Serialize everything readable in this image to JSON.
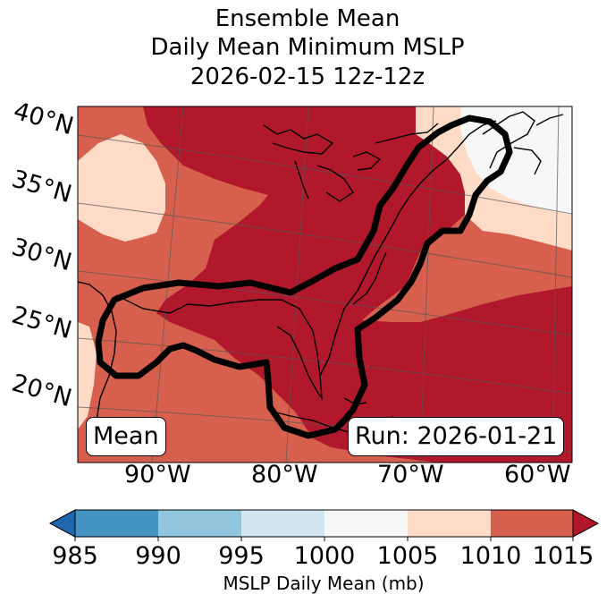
{
  "title": {
    "line1": "Ensemble Mean",
    "line2": "Daily Mean Minimum MSLP",
    "line3": "2026-02-15 12z-12z"
  },
  "map": {
    "lat_labels": [
      "40°N",
      "35°N",
      "30°N",
      "25°N",
      "20°N"
    ],
    "lon_labels": [
      "90°W",
      "80°W",
      "70°W",
      "60°W"
    ],
    "mean_label": "Mean",
    "run_label": "Run: 2026-01-21"
  },
  "colorbar": {
    "label": "MSLP Daily Mean (mb)",
    "ticks": [
      "985",
      "990",
      "995",
      "1000",
      "1005",
      "1010",
      "1015"
    ],
    "colors": {
      "below": "#2166ac",
      "985-990": "#4393c3",
      "990-995": "#92c5de",
      "995-1000": "#d1e5f0",
      "1000-1005": "#f7f7f7",
      "1005-1010": "#fddbc7",
      "1010-1015": "#d6604d",
      "above": "#b2182b"
    }
  }
}
